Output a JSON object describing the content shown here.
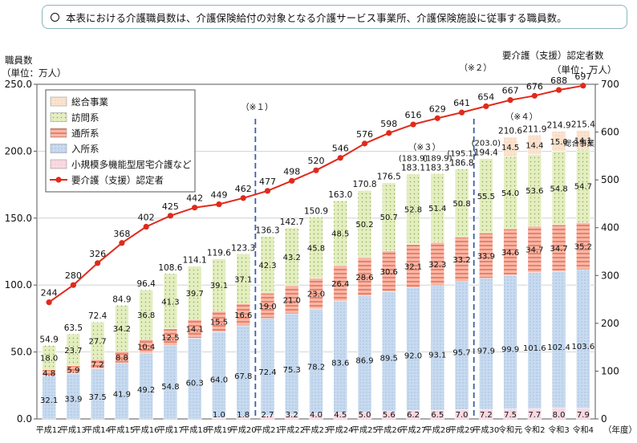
{
  "notice": {
    "text": "本表における介護職員数は、介護保険給付の対象となる介護サービス事業所、介護保険施設に従事する職員数。"
  },
  "left_axis": {
    "title": "職員数",
    "unit": "（単位：万人）"
  },
  "right_axis": {
    "title": "要介護（支援）認定者数",
    "unit": "（単位：万人）"
  },
  "colors": {
    "総合事業": "#fbe3cf",
    "訪問系": "#e5efc1",
    "通所系": "#f5a896",
    "入所系": "#c6d9ef",
    "小規模多機能型居宅介護など": "#f8d5df",
    "line": "#e02a1c",
    "divider": "#3a5fa6"
  },
  "chart_data": {
    "type": "bar",
    "stacked": true,
    "xlabel": "（年度）",
    "categories": [
      "平成12",
      "平成13",
      "平成14",
      "平成15",
      "平成16",
      "平成17",
      "平成18",
      "平成19",
      "平成20",
      "平成21",
      "平成22",
      "平成23",
      "平成24",
      "平成25",
      "平成26",
      "平成27",
      "平成28",
      "平成29",
      "平成30",
      "令和元",
      "令和2",
      "令和3",
      "令和4"
    ],
    "ylim": [
      0,
      250
    ],
    "yticks": [
      "0.0",
      "50.0",
      "100.0",
      "150.0",
      "200.0",
      "250.0"
    ],
    "y2lim": [
      0,
      700
    ],
    "y2ticks": [
      "0",
      "100",
      "200",
      "300",
      "400",
      "500",
      "600",
      "700"
    ],
    "series": [
      {
        "name": "小規模多機能型居宅介護など",
        "values": [
          0,
          0,
          0,
          0,
          0,
          0,
          0,
          1.0,
          1.8,
          2.7,
          3.2,
          4.0,
          4.5,
          5.0,
          5.6,
          6.2,
          6.5,
          7.0,
          7.2,
          7.5,
          7.7,
          8.0,
          7.9
        ],
        "labels": [
          "",
          "",
          "",
          "",
          "",
          "",
          "",
          "1.0",
          "1.8",
          "2.7",
          "3.2",
          "4.0",
          "4.5",
          "5.0",
          "5.6",
          "6.2",
          "6.5",
          "7.0",
          "7.2",
          "7.5",
          "7.7",
          "8.0",
          "7.9"
        ]
      },
      {
        "name": "入所系",
        "values": [
          32.1,
          33.9,
          37.5,
          41.9,
          49.2,
          54.8,
          60.3,
          64.0,
          67.8,
          72.4,
          75.3,
          78.2,
          83.6,
          86.9,
          89.5,
          92.0,
          93.1,
          95.7,
          97.9,
          99.9,
          101.6,
          102.4,
          103.6
        ],
        "labels": [
          "32.1",
          "33.9",
          "37.5",
          "41.9",
          "49.2",
          "54.8",
          "60.3",
          "64.0",
          "67.8",
          "72.4",
          "75.3",
          "78.2",
          "83.6",
          "86.9",
          "89.5",
          "92.0",
          "93.1",
          "95.7",
          "97.9",
          "99.9",
          "101.6",
          "102.4",
          "103.6"
        ]
      },
      {
        "name": "通所系",
        "values": [
          4.8,
          5.9,
          7.2,
          8.8,
          10.4,
          12.5,
          14.1,
          15.5,
          16.6,
          19.0,
          21.0,
          23.0,
          26.4,
          28.6,
          30.6,
          32.1,
          32.3,
          33.2,
          33.9,
          34.6,
          34.7,
          34.7,
          35.2
        ],
        "labels": [
          "4.8",
          "5.9",
          "7.2",
          "8.8",
          "10.4",
          "12.5",
          "14.1",
          "15.5",
          "16.6",
          "19.0",
          "21.0",
          "23.0",
          "26.4",
          "28.6",
          "30.6",
          "32.1",
          "32.3",
          "33.2",
          "33.9",
          "34.6",
          "34.7",
          "34.7",
          "35.2"
        ]
      },
      {
        "name": "訪問系",
        "values": [
          18.0,
          23.7,
          27.7,
          34.2,
          36.8,
          41.3,
          39.7,
          39.1,
          37.1,
          42.3,
          43.2,
          45.8,
          48.5,
          50.2,
          50.7,
          52.8,
          51.4,
          50.8,
          55.5,
          54.0,
          53.6,
          54.8,
          54.7
        ],
        "labels": [
          "18.0",
          "23.7",
          "27.7",
          "34.2",
          "36.8",
          "41.3",
          "39.7",
          "39.1",
          "37.1",
          "42.3",
          "43.2",
          "45.8",
          "48.5",
          "50.2",
          "50.7",
          "52.8",
          "51.4",
          "50.8",
          "55.5",
          "54.0",
          "53.6",
          "54.8",
          "54.7"
        ]
      },
      {
        "name": "総合事業",
        "values": [
          0,
          0,
          0,
          0,
          0,
          0,
          0,
          0,
          0,
          0,
          0,
          0,
          0,
          0,
          0,
          0,
          0,
          0,
          0,
          14.5,
          14.4,
          15.0,
          14.1
        ],
        "labels": [
          "",
          "",
          "",
          "",
          "",
          "",
          "",
          "",
          "",
          "",
          "",
          "",
          "",
          "",
          "",
          "",
          "",
          "",
          "",
          "14.5",
          "14.4",
          "15.0",
          "14.1"
        ]
      }
    ],
    "totals": [
      "54.9",
      "63.5",
      "72.4",
      "84.9",
      "96.4",
      "108.6",
      "114.1",
      "119.6",
      "123.3",
      "136.3",
      "142.7",
      "150.9",
      "163.0",
      "170.8",
      "176.5",
      "183.1",
      "183.3",
      "186.8",
      "194.4",
      "210.6",
      "211.9",
      "214.9",
      "215.4"
    ],
    "total_values": [
      54.9,
      63.5,
      72.4,
      84.9,
      96.4,
      108.6,
      114.1,
      119.6,
      123.3,
      136.3,
      142.7,
      150.9,
      163.0,
      170.8,
      176.5,
      183.1,
      183.3,
      186.8,
      194.4,
      210.6,
      211.9,
      214.9,
      215.4
    ],
    "paren_totals": [
      "",
      "",
      "",
      "",
      "",
      "",
      "",
      "",
      "",
      "",
      "",
      "",
      "",
      "",
      "",
      "(183.9)",
      "(189.9)",
      "(195.1)",
      "(203.0)",
      "",
      "",
      "",
      ""
    ],
    "line": {
      "name": "要介護（支援）認定者",
      "values": [
        244,
        280,
        326,
        368,
        402,
        425,
        442,
        449,
        462,
        477,
        498,
        520,
        546,
        576,
        598,
        616,
        629,
        641,
        654,
        667,
        676,
        688,
        697
      ],
      "labels": [
        "244",
        "280",
        "326",
        "368",
        "402",
        "425",
        "442",
        "449",
        "462",
        "477",
        "498",
        "520",
        "546",
        "576",
        "598",
        "616",
        "629",
        "641",
        "654",
        "667",
        "676",
        "688",
        "697"
      ]
    },
    "annotations": [
      "（※１）",
      "（※２）",
      "（※３）",
      "（※４）"
    ],
    "side_label": "総合事業",
    "legend": [
      "総合事業",
      "訪問系",
      "通所系",
      "入所系",
      "小規模多機能型居宅介護など",
      "要介護（支援）認定者"
    ],
    "legend_position": "top-left"
  }
}
